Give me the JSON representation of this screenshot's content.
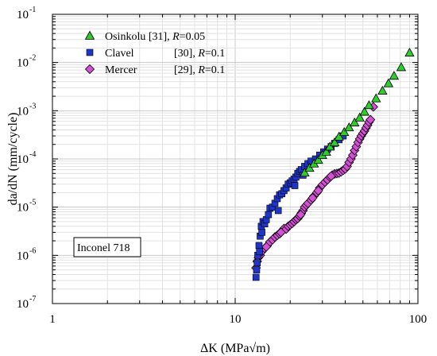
{
  "chart_data": {
    "type": "scatter",
    "xscale": "log",
    "yscale": "log",
    "xlim": [
      1,
      100
    ],
    "ylim": [
      1e-07,
      0.1
    ],
    "grid": true,
    "legend_position": "top-left",
    "xlabel": "ΔK (MPa√m)",
    "ylabel": "da/dN (mm/cycle)",
    "x_ticks": [
      {
        "value": 1,
        "label": "1"
      },
      {
        "value": 10,
        "label": "10"
      },
      {
        "value": 100,
        "label": "100"
      }
    ],
    "y_ticks": [
      {
        "value": 1e-07,
        "base": "10",
        "exp": "-7"
      },
      {
        "value": 1e-06,
        "base": "10",
        "exp": "-6"
      },
      {
        "value": 1e-05,
        "base": "10",
        "exp": "-5"
      },
      {
        "value": 0.0001,
        "base": "10",
        "exp": "-4"
      },
      {
        "value": 0.001,
        "base": "10",
        "exp": "-3"
      },
      {
        "value": 0.01,
        "base": "10",
        "exp": "-2"
      },
      {
        "value": 0.1,
        "base": "10",
        "exp": "-1"
      }
    ],
    "annotation": "Inconel 718",
    "series": [
      {
        "name": "Osinkolu [31],",
        "r_label": "R",
        "r_value": "=0.05",
        "marker": "triangle",
        "color": "#2ecc2e",
        "points": [
          [
            24,
            5.2e-05
          ],
          [
            25.5,
            6.5e-05
          ],
          [
            27,
            8e-05
          ],
          [
            28.5,
            9.5e-05
          ],
          [
            30,
            0.00012
          ],
          [
            31.5,
            0.00014
          ],
          [
            33,
            0.00018
          ],
          [
            35,
            0.00022
          ],
          [
            37,
            0.00029
          ],
          [
            39.5,
            0.00036
          ],
          [
            42,
            0.00045
          ],
          [
            45,
            0.00057
          ],
          [
            48,
            0.00072
          ],
          [
            51,
            0.00095
          ],
          [
            54,
            0.0013
          ],
          [
            59,
            0.0018
          ],
          [
            64,
            0.0026
          ],
          [
            69,
            0.0037
          ],
          [
            74,
            0.0053
          ],
          [
            81,
            0.008
          ],
          [
            90,
            0.016
          ]
        ]
      },
      {
        "name": "Clavel",
        "r_label": "R",
        "r_value": "=0.1",
        "r_prefix": "[30],",
        "marker": "square",
        "color": "#1f35c8",
        "points": [
          [
            13.0,
            3.5e-07
          ],
          [
            13.1,
            5e-07
          ],
          [
            13.2,
            7e-07
          ],
          [
            13.3,
            1e-06
          ],
          [
            13.5,
            1.6e-06
          ],
          [
            13.7,
            2.5e-06
          ],
          [
            13.9,
            4e-06
          ],
          [
            14.2,
            5e-06
          ],
          [
            14.5,
            4.5e-06
          ],
          [
            14.8,
            5.5e-06
          ],
          [
            15.2,
            7e-06
          ],
          [
            15.5,
            9.5e-06
          ],
          [
            16.0,
            1e-05
          ],
          [
            16.5,
            1.2e-05
          ],
          [
            17.0,
            1.5e-05
          ],
          [
            17.5,
            1.8e-05
          ],
          [
            18.0,
            1.9e-05
          ],
          [
            18.5,
            2.2e-05
          ],
          [
            19.0,
            2.5e-05
          ],
          [
            19.5,
            3e-05
          ],
          [
            20.0,
            3.2e-05
          ],
          [
            20.5,
            3.5e-05
          ],
          [
            21.0,
            3.8e-05
          ],
          [
            21.5,
            4.2e-05
          ],
          [
            22.0,
            5e-05
          ],
          [
            22.5,
            5.5e-05
          ],
          [
            23.0,
            6e-05
          ],
          [
            24.0,
            7e-05
          ],
          [
            25.0,
            8e-05
          ],
          [
            26.0,
            9e-05
          ],
          [
            27.5,
            0.0001
          ],
          [
            29.0,
            0.00012
          ],
          [
            30.5,
            0.00014
          ],
          [
            32.0,
            0.00016
          ],
          [
            33.5,
            0.00018
          ],
          [
            35.0,
            0.00021
          ],
          [
            37.0,
            0.00025
          ],
          [
            39.0,
            0.0003
          ],
          [
            14.0,
            3e-06
          ],
          [
            13.6,
            1.2e-06
          ],
          [
            17.2,
            8.5e-06
          ],
          [
            21.2,
            2.8e-05
          ],
          [
            23.5,
            4.6e-05
          ]
        ]
      },
      {
        "name": "Mercer",
        "r_label": "R",
        "r_value": "=0.1",
        "r_prefix": "[29],",
        "marker": "diamond",
        "color": "#d64fd6",
        "points": [
          [
            13.0,
            5.5e-07
          ],
          [
            13.2,
            7.5e-07
          ],
          [
            13.4,
            9e-07
          ],
          [
            13.7,
            1e-06
          ],
          [
            14.0,
            1.2e-06
          ],
          [
            14.5,
            1.4e-06
          ],
          [
            15.0,
            1.6e-06
          ],
          [
            15.5,
            1.9e-06
          ],
          [
            16.0,
            2.1e-06
          ],
          [
            16.5,
            2.4e-06
          ],
          [
            17.0,
            2.6e-06
          ],
          [
            17.5,
            2.8e-06
          ],
          [
            18.0,
            3.2e-06
          ],
          [
            18.5,
            3.6e-06
          ],
          [
            19.0,
            3.5e-06
          ],
          [
            19.5,
            4e-06
          ],
          [
            20.0,
            4.3e-06
          ],
          [
            20.5,
            4.6e-06
          ],
          [
            21.0,
            5e-06
          ],
          [
            21.5,
            5.5e-06
          ],
          [
            22.0,
            5.8e-06
          ],
          [
            22.5,
            6.5e-06
          ],
          [
            23.0,
            7.5e-06
          ],
          [
            23.5,
            8.5e-06
          ],
          [
            24.0,
            1e-05
          ],
          [
            24.5,
            1.1e-05
          ],
          [
            25.0,
            1.2e-05
          ],
          [
            26.0,
            1.4e-05
          ],
          [
            27.0,
            1.7e-05
          ],
          [
            28.0,
            2e-05
          ],
          [
            29.0,
            2.5e-05
          ],
          [
            30.0,
            2.9e-05
          ],
          [
            31.0,
            3.3e-05
          ],
          [
            32.0,
            3.7e-05
          ],
          [
            33.0,
            4.2e-05
          ],
          [
            34.0,
            4.6e-05
          ],
          [
            35.0,
            4.9e-05
          ],
          [
            36.0,
            5e-05
          ],
          [
            37.0,
            5.1e-05
          ],
          [
            38.0,
            5.4e-05
          ],
          [
            39.0,
            5.8e-05
          ],
          [
            40.0,
            6.2e-05
          ],
          [
            41.0,
            7e-05
          ],
          [
            42.0,
            8.5e-05
          ],
          [
            43.0,
            0.0001
          ],
          [
            44.0,
            0.00012
          ],
          [
            45.0,
            0.00015
          ],
          [
            46.0,
            0.00018
          ],
          [
            47.0,
            0.00022
          ],
          [
            48.0,
            0.00026
          ],
          [
            49.0,
            0.0003
          ],
          [
            50.0,
            0.00034
          ],
          [
            51.0,
            0.00038
          ],
          [
            52.0,
            0.00044
          ],
          [
            53.0,
            0.0005
          ],
          [
            54.0,
            0.00058
          ],
          [
            55.0,
            0.00065
          ],
          [
            57.0,
            0.0012
          ],
          [
            22.8,
            7e-06
          ],
          [
            26.5,
            1.55e-05
          ],
          [
            28.5,
            2.2e-05
          ],
          [
            33.5,
            4.4e-05
          ],
          [
            17.8,
            3e-06
          ],
          [
            14.8,
            1.5e-06
          ]
        ]
      }
    ]
  }
}
